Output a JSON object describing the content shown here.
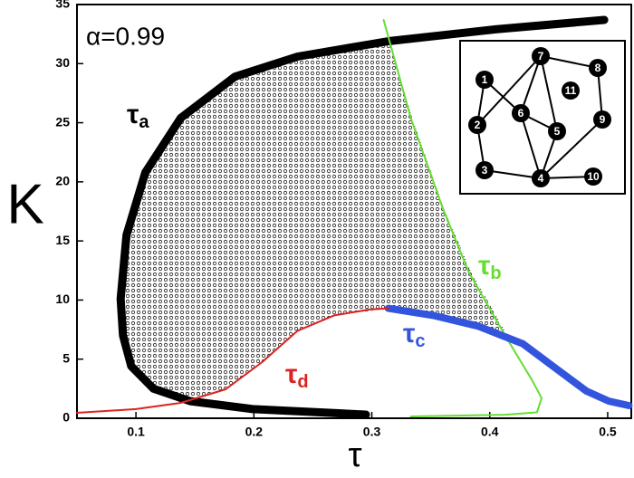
{
  "chart_data": {
    "type": "line",
    "annotation": "α=0.99",
    "x_label": "τ",
    "y_label": "K",
    "xlim": [
      0.05,
      0.52
    ],
    "ylim": [
      0,
      35
    ],
    "xticks": [
      0.1,
      0.2,
      0.3,
      0.4,
      0.5
    ],
    "yticks": [
      0,
      5,
      10,
      15,
      20,
      25,
      30,
      35
    ],
    "series": [
      {
        "name": "τa",
        "color": "#000000",
        "x": [
          0.497,
          0.405,
          0.314,
          0.237,
          0.184,
          0.138,
          0.108,
          0.092,
          0.087,
          0.089,
          0.096,
          0.115,
          0.146,
          0.199,
          0.295
        ],
        "values": [
          33.7,
          32.9,
          31.9,
          30.6,
          28.9,
          25.4,
          20.8,
          15.5,
          10.1,
          7.0,
          4.4,
          2.5,
          1.45,
          0.77,
          0.31
        ]
      },
      {
        "name": "τb",
        "color": "#66dd33",
        "x": [
          0.31,
          0.333,
          0.36,
          0.382,
          0.413,
          0.436,
          0.444,
          0.44,
          0.413,
          0.333
        ],
        "values": [
          33.7,
          25.4,
          17.8,
          12.4,
          7.0,
          3.2,
          1.7,
          0.5,
          0.3,
          0.15
        ]
      },
      {
        "name": "τc",
        "color": "#3355dd",
        "x": [
          0.314,
          0.352,
          0.39,
          0.428,
          0.459,
          0.482,
          0.501,
          0.518
        ],
        "values": [
          9.3,
          8.7,
          7.8,
          6.3,
          4.0,
          2.3,
          1.45,
          1.07
        ]
      },
      {
        "name": "τd",
        "color": "#dd2222",
        "x": [
          0.05,
          0.1,
          0.138,
          0.176,
          0.207,
          0.237,
          0.268,
          0.298,
          0.314
        ],
        "values": [
          0.46,
          0.77,
          1.3,
          2.45,
          4.75,
          7.4,
          8.7,
          9.2,
          9.3
        ]
      }
    ]
  },
  "inset": {
    "nodes": [
      "1",
      "2",
      "3",
      "4",
      "5",
      "6",
      "7",
      "8",
      "9",
      "10",
      "11"
    ]
  }
}
